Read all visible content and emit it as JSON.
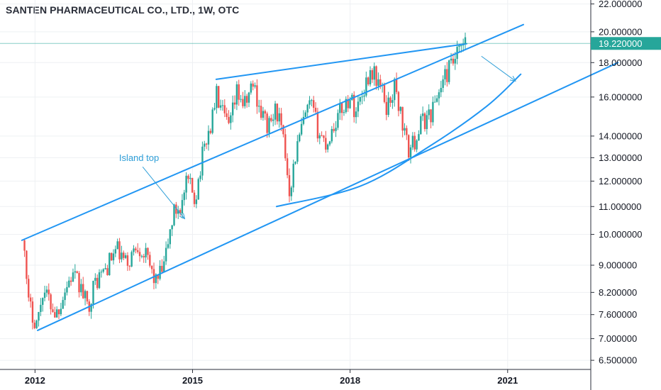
{
  "header": {
    "title": "SANTEN PHARMACEUTICAL CO., LTD., 1W, OTC"
  },
  "colors": {
    "up": "#26a69a",
    "down": "#ef5350",
    "drawing": "#2196f3",
    "annotation": "#2f9fd8",
    "last_price_line": "#26a69a",
    "axis_text": "#131722",
    "grid": "#eef0f3"
  },
  "chart_data": {
    "type": "candlestick",
    "title": "SANTEN PHARMACEUTICAL CO., LTD., 1W, OTC",
    "y_scale": "log",
    "ylim": [
      6.3,
      22.3
    ],
    "xlim": [
      "2011-05",
      "2022-08"
    ],
    "y_ticks": [
      {
        "value": 22,
        "label": "22.000000"
      },
      {
        "value": 20,
        "label": "20.000000"
      },
      {
        "value": 18,
        "label": "18.000000"
      },
      {
        "value": 16,
        "label": "16.000000"
      },
      {
        "value": 14,
        "label": "14.000000"
      },
      {
        "value": 13,
        "label": "13.000000"
      },
      {
        "value": 12,
        "label": "12.000000"
      },
      {
        "value": 11,
        "label": "11.000000"
      },
      {
        "value": 10,
        "label": "10.000000"
      },
      {
        "value": 9,
        "label": "9.000000"
      },
      {
        "value": 8.2,
        "label": "8.200000"
      },
      {
        "value": 7.6,
        "label": "7.600000"
      },
      {
        "value": 7,
        "label": "7.000000"
      },
      {
        "value": 6.5,
        "label": "6.500000"
      }
    ],
    "x_ticks": [
      {
        "value": 2012,
        "label": "2012"
      },
      {
        "value": 2015,
        "label": "2015"
      },
      {
        "value": 2018,
        "label": "2018"
      },
      {
        "value": 2021,
        "label": "2021"
      }
    ],
    "last_price": {
      "value": 19.22,
      "label": "19.220000"
    },
    "price_path": [
      [
        2011.8,
        9.8
      ],
      [
        2011.85,
        8.0
      ],
      [
        2011.95,
        7.6
      ],
      [
        2012.05,
        7.4
      ],
      [
        2012.15,
        8.3
      ],
      [
        2012.3,
        7.9
      ],
      [
        2012.4,
        7.6
      ],
      [
        2012.55,
        8.2
      ],
      [
        2012.7,
        8.7
      ],
      [
        2012.85,
        8.4
      ],
      [
        2013.0,
        7.8
      ],
      [
        2013.15,
        8.5
      ],
      [
        2013.35,
        8.9
      ],
      [
        2013.55,
        9.5
      ],
      [
        2013.75,
        9.0
      ],
      [
        2013.95,
        9.7
      ],
      [
        2014.1,
        9.3
      ],
      [
        2014.3,
        8.5
      ],
      [
        2014.45,
        8.9
      ],
      [
        2014.55,
        9.9
      ],
      [
        2014.65,
        10.8
      ],
      [
        2014.8,
        11.1
      ],
      [
        2014.9,
        12.0
      ],
      [
        2015.05,
        11.3
      ],
      [
        2015.15,
        12.6
      ],
      [
        2015.25,
        13.8
      ],
      [
        2015.35,
        14.5
      ],
      [
        2015.45,
        16.2
      ],
      [
        2015.55,
        15.2
      ],
      [
        2015.7,
        14.3
      ],
      [
        2015.85,
        16.3
      ],
      [
        2016.0,
        15.5
      ],
      [
        2016.15,
        16.8
      ],
      [
        2016.3,
        15.2
      ],
      [
        2016.45,
        14.4
      ],
      [
        2016.6,
        15.4
      ],
      [
        2016.75,
        13.4
      ],
      [
        2016.85,
        11.6
      ],
      [
        2016.95,
        13.0
      ],
      [
        2017.1,
        14.6
      ],
      [
        2017.25,
        15.6
      ],
      [
        2017.4,
        14.2
      ],
      [
        2017.55,
        13.6
      ],
      [
        2017.7,
        14.6
      ],
      [
        2017.85,
        15.4
      ],
      [
        2018.0,
        16.0
      ],
      [
        2018.1,
        15.2
      ],
      [
        2018.25,
        16.4
      ],
      [
        2018.4,
        17.6
      ],
      [
        2018.55,
        16.8
      ],
      [
        2018.7,
        15.4
      ],
      [
        2018.85,
        16.6
      ],
      [
        2019.0,
        14.6
      ],
      [
        2019.1,
        13.3
      ],
      [
        2019.2,
        13.6
      ],
      [
        2019.35,
        14.6
      ],
      [
        2019.55,
        15.2
      ],
      [
        2019.7,
        16.4
      ],
      [
        2019.85,
        17.4
      ],
      [
        2020.0,
        18.2
      ],
      [
        2020.15,
        19.0
      ],
      [
        2020.22,
        19.22
      ]
    ],
    "annotations": [
      {
        "type": "text",
        "text": "Island top",
        "x": 2013.6,
        "y": 12.85
      },
      {
        "type": "arrow",
        "from": [
          2014.05,
          12.6
        ],
        "to": [
          2014.85,
          10.55
        ]
      },
      {
        "type": "arrow",
        "from": [
          2020.5,
          18.4
        ],
        "to": [
          2021.15,
          16.9
        ]
      }
    ],
    "trend_lines": [
      {
        "name": "channel-upper",
        "from": [
          2011.75,
          9.8
        ],
        "to": [
          2021.3,
          20.5
        ]
      },
      {
        "name": "channel-lower",
        "from": [
          2012.05,
          7.2
        ],
        "to": [
          2023.1,
          18.0
        ]
      },
      {
        "name": "wedge-upper",
        "from": [
          2015.45,
          17.0
        ],
        "to": [
          2020.22,
          19.2
        ]
      }
    ],
    "curves": [
      {
        "name": "parabolic-support",
        "points": [
          [
            2016.6,
            11.0
          ],
          [
            2018.2,
            11.8
          ],
          [
            2019.5,
            13.5
          ],
          [
            2020.6,
            15.5
          ],
          [
            2021.25,
            17.3
          ]
        ]
      }
    ]
  }
}
